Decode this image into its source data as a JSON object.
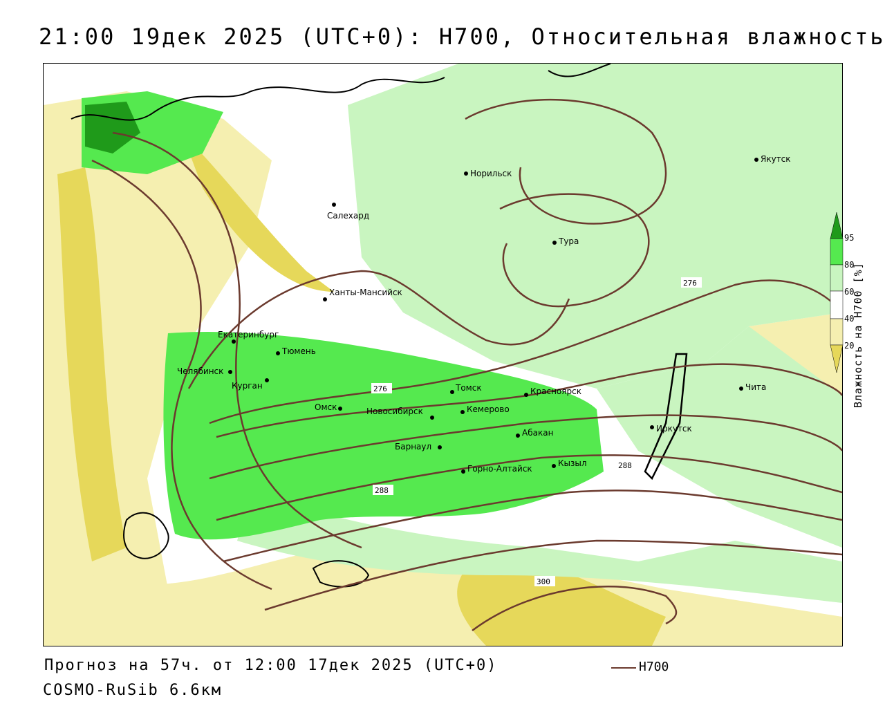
{
  "title": "21:00 19дек 2025 (UTC+0): H700, Относительная влажность",
  "footer": {
    "forecast": "Прогноз на 57ч. от 12:00 17дек 2025 (UTC+0)",
    "model": "COSMO-RuSib 6.6км",
    "legend_label": "H700"
  },
  "colors": {
    "dry_yellow": "#e6d85a",
    "pale_yellow": "#f5efb0",
    "pale_green": "#c9f5c0",
    "green": "#55e94f",
    "dark_green": "#1f9a1a",
    "contour": "#6b3a2e"
  },
  "scale": {
    "title": "Влажность на H700 [%]",
    "ticks": [
      "95",
      "80",
      "60",
      "40",
      "20"
    ]
  },
  "cities": [
    {
      "name": "Норильск"
    },
    {
      "name": "Якутск"
    },
    {
      "name": "Салехард"
    },
    {
      "name": "Тура"
    },
    {
      "name": "Ханты-Мансийск"
    },
    {
      "name": "Екатеринбург"
    },
    {
      "name": "Тюмень"
    },
    {
      "name": "Челябинск"
    },
    {
      "name": "Курган"
    },
    {
      "name": "Омск"
    },
    {
      "name": "Новосибирск"
    },
    {
      "name": "Томск"
    },
    {
      "name": "Кемерово"
    },
    {
      "name": "Красноярск"
    },
    {
      "name": "Абакан"
    },
    {
      "name": "Барнаул"
    },
    {
      "name": "Горно-Алтайск"
    },
    {
      "name": "Кызыл"
    },
    {
      "name": "Иркутск"
    },
    {
      "name": "Чита"
    }
  ],
  "contour_labels": [
    "276",
    "276",
    "288",
    "288",
    "300"
  ]
}
